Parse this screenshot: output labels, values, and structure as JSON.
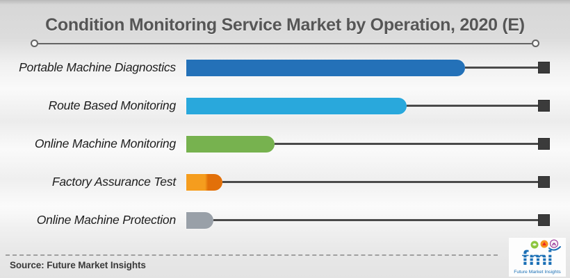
{
  "title": "Condition Monitoring Service Market by Operation, 2020 (E)",
  "footer": {
    "source": "Source: Future Market Insights"
  },
  "logo": {
    "text": "fmi",
    "tagline": "Future Market Insights",
    "brand_color": "#1a6fb5",
    "figure_colors": [
      "#8dc63f",
      "#f7941d",
      "#92278f"
    ]
  },
  "style_colors": {
    "title_color": "#565656",
    "connector_color": "#4a4a4a",
    "end_marker_color": "#3b3b3b",
    "label_color": "#1d1d1d"
  },
  "chart_data": {
    "type": "bar",
    "orientation": "horizontal",
    "title": "Condition Monitoring Service Market by Operation, 2020 (E)",
    "xlabel": "",
    "ylabel": "",
    "note": "No numeric axis or data labels shown; values estimated as bar length in % of full connector track",
    "legend": false,
    "grid": false,
    "categories": [
      "Portable Machine Diagnostics",
      "Route Based Monitoring",
      "Online Machine Monitoring",
      "Factory Assurance Test",
      "Online Machine Protection"
    ],
    "values_pct_of_track": [
      79,
      62.5,
      25,
      10.3,
      7.7
    ],
    "bars": [
      {
        "label": "Portable Machine Diagnostics",
        "value": 79,
        "color": "#2471b8"
      },
      {
        "label": "Route Based Monitoring",
        "value": 62.5,
        "color": "#29a8dc"
      },
      {
        "label": "Online Machine Monitoring",
        "value": 25,
        "color": "#77b24f"
      },
      {
        "label": "Factory Assurance Test",
        "value": 10.3,
        "color": "#f59d1e",
        "color2": "#e27009"
      },
      {
        "label": "Online Machine Protection",
        "value": 7.7,
        "color": "#99a0a8"
      }
    ]
  }
}
